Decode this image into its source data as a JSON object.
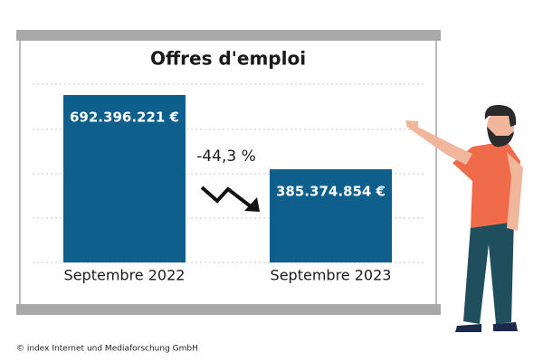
{
  "chart_data": {
    "type": "bar",
    "title": "Offres d'emploi",
    "categories": [
      "Septembre 2022",
      "Septembre 2023"
    ],
    "values": [
      692396221,
      385374854
    ],
    "value_labels": [
      "692.396.221 €",
      "385.374.854 €"
    ],
    "color": "#0f5f8c",
    "annotation": "-44,3 %",
    "source": "© index Internet und Mediaforschung GmbH"
  }
}
